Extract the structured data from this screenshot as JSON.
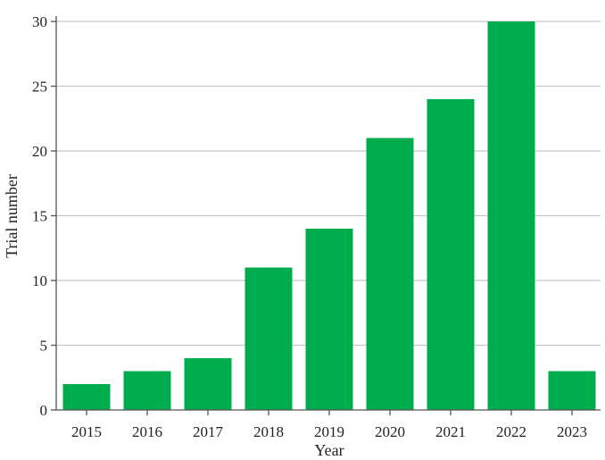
{
  "chart_data": {
    "type": "bar",
    "title": "",
    "xlabel": "Year",
    "ylabel": "Trial number",
    "categories": [
      "2015",
      "2016",
      "2017",
      "2018",
      "2019",
      "2020",
      "2021",
      "2022",
      "2023"
    ],
    "values": [
      2,
      3,
      4,
      11,
      14,
      21,
      24,
      30,
      3
    ],
    "ylim": [
      0,
      30
    ],
    "yticks": [
      0,
      5,
      10,
      15,
      20,
      25,
      30
    ],
    "grid": "horizontal",
    "bar_color": "#00AD4E"
  }
}
